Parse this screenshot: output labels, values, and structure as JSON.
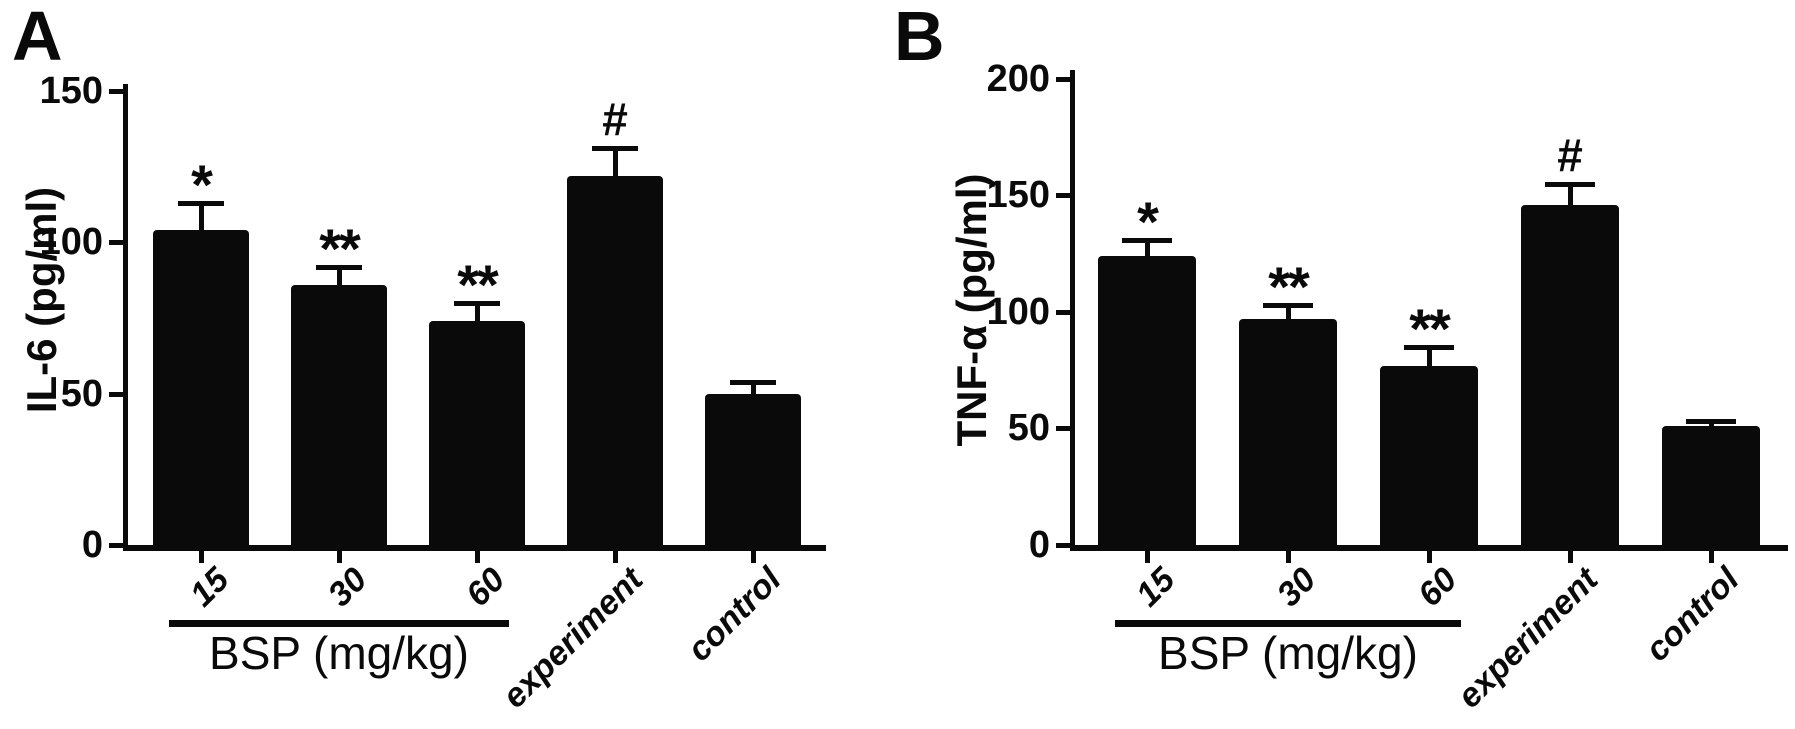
{
  "colors": {
    "ink": "#0a0a0a",
    "background": "#ffffff",
    "bar": "#0a0a0a"
  },
  "chart_data": [
    {
      "type": "bar",
      "panel_letter": "A",
      "ylabel": "IL-6 (pg/ml)",
      "xlabel_group": "BSP (mg/kg)",
      "grouped_categories": [
        "15",
        "30",
        "60"
      ],
      "categories": [
        "15",
        "30",
        "60",
        "experiment",
        "control"
      ],
      "values": [
        104,
        86,
        74,
        122,
        50
      ],
      "errors_plus": [
        9,
        6,
        6,
        9,
        4
      ],
      "sig_markers": [
        "*",
        "**",
        "**",
        "#",
        ""
      ],
      "y_ticks": [
        0,
        50,
        100,
        150
      ],
      "ylim": [
        0,
        150
      ],
      "grid": false,
      "legend_position": "none",
      "bar_color": "#0a0a0a"
    },
    {
      "type": "bar",
      "panel_letter": "B",
      "ylabel": "TNF-α (pg/ml)",
      "xlabel_group": "BSP (mg/kg)",
      "grouped_categories": [
        "15",
        "30",
        "60"
      ],
      "categories": [
        "15",
        "30",
        "60",
        "experiment",
        "control"
      ],
      "values": [
        124,
        97,
        77,
        146,
        51
      ],
      "errors_plus": [
        7,
        6,
        8,
        9,
        2
      ],
      "sig_markers": [
        "*",
        "**",
        "**",
        "#",
        ""
      ],
      "y_ticks": [
        0,
        50,
        100,
        150,
        200
      ],
      "ylim": [
        0,
        200
      ],
      "grid": false,
      "legend_position": "none",
      "bar_color": "#0a0a0a"
    }
  ]
}
